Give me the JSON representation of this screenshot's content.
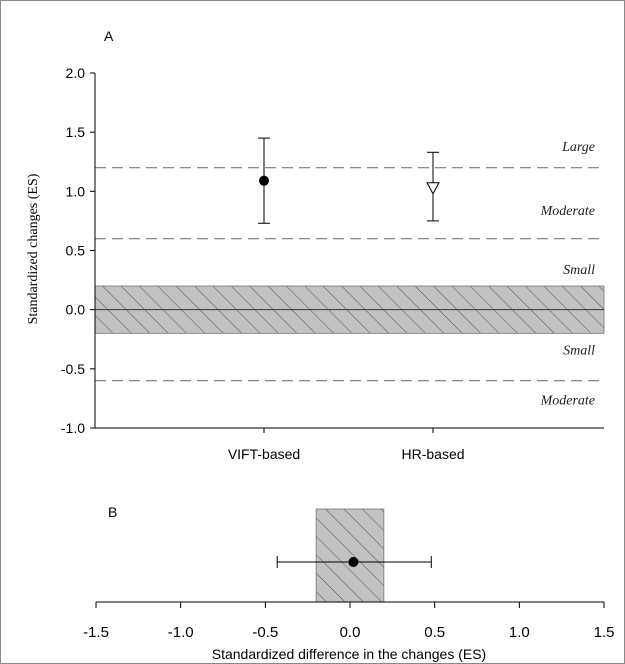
{
  "chart_data": [
    {
      "type": "scatter",
      "panel_label": "A",
      "ylabel": "Standardized changes (ES)",
      "ylim": [
        -1.0,
        2.0
      ],
      "yticks": [
        -1.0,
        -0.5,
        0.0,
        0.5,
        1.0,
        1.5,
        2.0
      ],
      "ytick_labels": [
        "-1.0",
        "-0.5",
        "0.0",
        "0.5",
        "1.0",
        "1.5",
        "2.0"
      ],
      "categories": [
        "VIFT-based",
        "HR-based"
      ],
      "points": [
        {
          "category": "VIFT-based",
          "y": 1.09,
          "lower": 0.73,
          "upper": 1.45,
          "marker": "filled-circle"
        },
        {
          "category": "HR-based",
          "y": 1.03,
          "lower": 0.75,
          "upper": 1.33,
          "marker": "open-triangle-down"
        }
      ],
      "trivial_band": [
        -0.2,
        0.2
      ],
      "threshold_lines": [
        {
          "y": 1.2,
          "label": "Large"
        },
        {
          "y": 0.6,
          "label": "Moderate"
        },
        {
          "y": -0.6,
          "label": "Moderate"
        }
      ],
      "region_labels": [
        {
          "y": 1.34,
          "text": "Large"
        },
        {
          "y": 0.8,
          "text": "Moderate"
        },
        {
          "y": 0.3,
          "text": "Small"
        },
        {
          "y": -0.38,
          "text": "Small"
        },
        {
          "y": -0.8,
          "text": "Moderate"
        }
      ],
      "zero_line": 0.0,
      "grid": false
    },
    {
      "type": "scatter",
      "panel_label": "B",
      "xlabel": "Standardized difference in the changes (ES)",
      "xlim": [
        -1.5,
        1.5
      ],
      "xticks": [
        -1.5,
        -1.0,
        -0.5,
        0.0,
        0.5,
        1.0,
        1.5
      ],
      "xtick_labels": [
        "-1.5",
        "-1.0",
        "-0.5",
        "0.0",
        "0.5",
        "1.0",
        "1.5"
      ],
      "point": {
        "x": 0.02,
        "lower": -0.43,
        "upper": 0.48,
        "marker": "filled-circle"
      },
      "trivial_band": [
        -0.2,
        0.2
      ],
      "grid": false
    }
  ]
}
